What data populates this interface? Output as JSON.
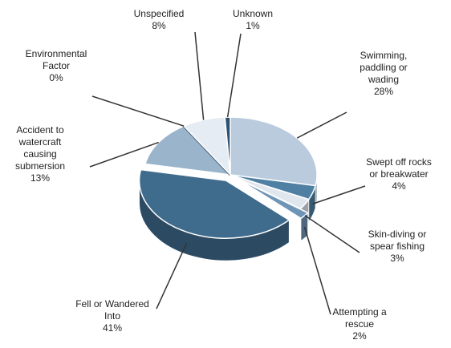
{
  "chart_data": {
    "type": "pie",
    "categories": [
      "Swimming, paddling or wading",
      "Swept off rocks or breakwater",
      "Skin-diving or spear fishing",
      "Attempting a rescue",
      "Fell or Wandered Into",
      "Accident to watercraft causing submersion",
      "Environmental Factor",
      "Unspecified",
      "Unknown"
    ],
    "values": [
      28,
      4,
      3,
      2,
      41,
      13,
      0,
      8,
      1
    ],
    "value_labels": [
      "28%",
      "4%",
      "3%",
      "2%",
      "41%",
      "13%",
      "0%",
      "8%",
      "1%"
    ],
    "colors": [
      "#b9cbdd",
      "#4f7fa3",
      "#dfe6ee",
      "#6f95b6",
      "#3f6b8d",
      "#9ab4cb",
      "#1f3d57",
      "#e6ecf3",
      "#2d5374"
    ],
    "exploded": [
      false,
      false,
      false,
      true,
      true,
      false,
      false,
      false,
      false
    ]
  }
}
